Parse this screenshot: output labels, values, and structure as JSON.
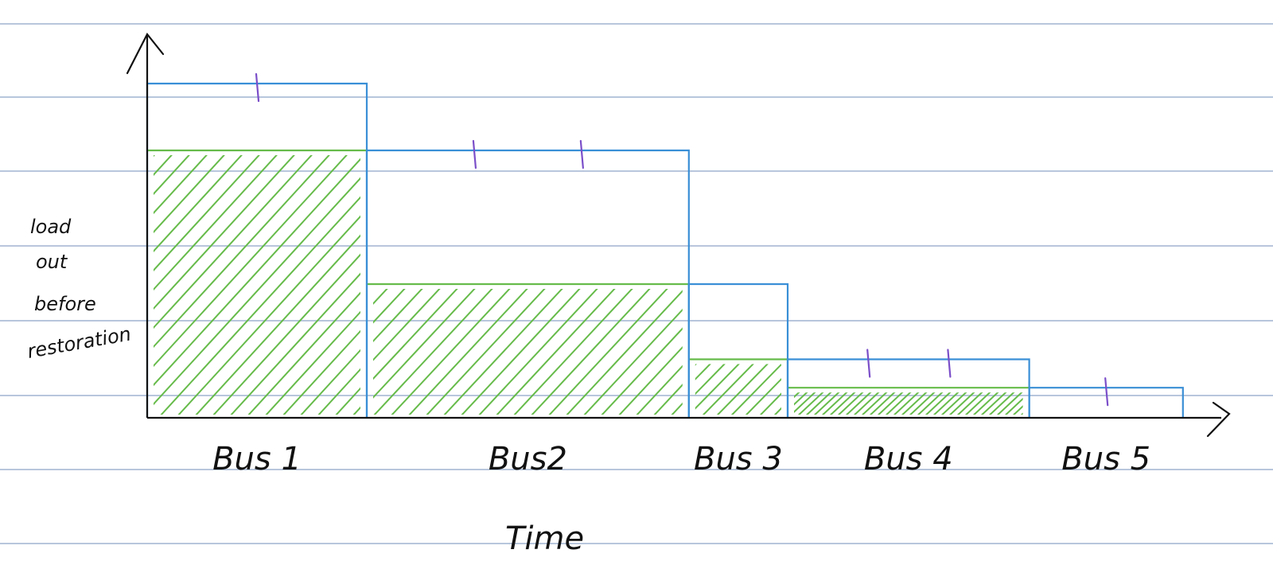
{
  "colors": {
    "paper_line": "#b8c6dc",
    "axis": "#111111",
    "outline": "#3a8fd6",
    "shade": "#66bb4a",
    "tick": "#7b4fc9"
  },
  "axes": {
    "y_label_lines": [
      "load",
      "out",
      "before",
      "restoration"
    ],
    "x_title": "Time"
  },
  "chart_data": {
    "type": "bar",
    "categories": [
      "Bus 1",
      "Bus2",
      "Bus 3",
      "Bus 4",
      "Bus 5"
    ],
    "outline_levels": [
      10,
      8,
      4,
      1.75,
      0.9
    ],
    "shaded_levels": [
      8,
      4,
      1.75,
      0.9,
      0
    ],
    "widths": [
      3,
      4.4,
      1.35,
      3.3,
      2.1
    ],
    "tick_marks_per_bus": [
      1,
      2,
      0,
      2,
      1
    ]
  }
}
